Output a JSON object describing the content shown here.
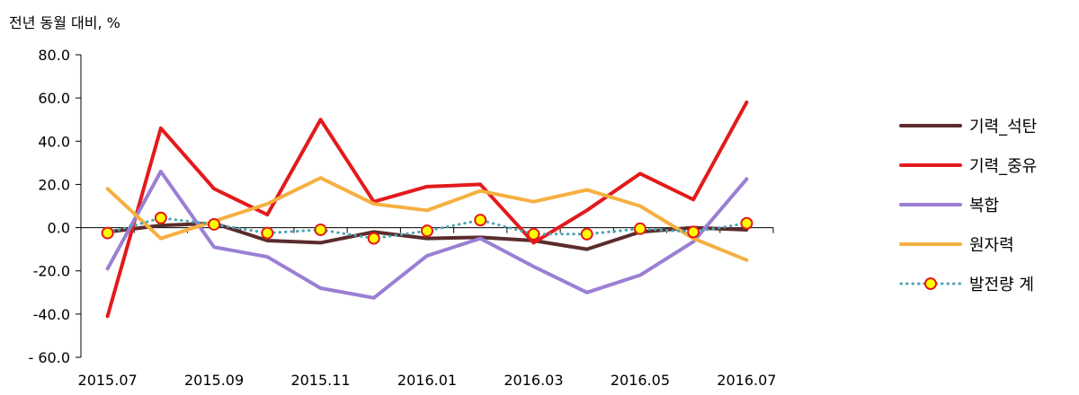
{
  "chart_data": {
    "type": "line",
    "ylabel": "전년 동월 대비, %",
    "xlabel": "",
    "ylim": [
      -60,
      80
    ],
    "yticks": [
      80,
      60,
      40,
      20,
      0,
      -20,
      -40,
      -60
    ],
    "ytick_labels": [
      "80.0",
      "60.0",
      "40.0",
      "20.0",
      "0.0",
      "-20.0",
      "-40.0",
      "- 60.0"
    ],
    "x": [
      "2015.07",
      "2015.08",
      "2015.09",
      "2015.10",
      "2015.11",
      "2015.12",
      "2016.01",
      "2016.02",
      "2016.03",
      "2016.04",
      "2016.05",
      "2016.06",
      "2016.07"
    ],
    "xtick_labels": [
      "2015.07",
      "2015.09",
      "2015.11",
      "2016.01",
      "2016.03",
      "2016.05",
      "2016.07"
    ],
    "grid": false,
    "legend_position": "right",
    "series": [
      {
        "name": "기력_석탄",
        "color": "#5b2c2c",
        "style": "solid",
        "values": [
          -2.0,
          1.0,
          2.0,
          -6.0,
          -7.0,
          -2.0,
          -5.0,
          -4.5,
          -6.0,
          -10.0,
          -2.0,
          0.0,
          -1.0
        ]
      },
      {
        "name": "기력_중유",
        "color": "#e31a1c",
        "style": "solid",
        "values": [
          -41.0,
          46.0,
          18.0,
          6.0,
          50.0,
          12.0,
          19.0,
          20.0,
          -7.0,
          8.0,
          25.0,
          13.0,
          58.0
        ]
      },
      {
        "name": "복합",
        "color": "#9b7fd4",
        "style": "solid",
        "values": [
          -19.0,
          26.0,
          -9.0,
          -13.5,
          -28.0,
          -32.5,
          -13.0,
          -5.0,
          -18.0,
          -30.0,
          -22.0,
          -6.5,
          22.5
        ]
      },
      {
        "name": "원자력",
        "color": "#f5b041",
        "style": "solid",
        "values": [
          18.0,
          -5.0,
          3.0,
          11.0,
          23.0,
          11.0,
          8.0,
          17.0,
          12.0,
          17.5,
          10.0,
          -5.0,
          -15.0
        ]
      },
      {
        "name": "발전량 계",
        "color": "#4aa3b3",
        "style": "dotted",
        "marker": "circle",
        "values": [
          -2.5,
          4.5,
          1.5,
          -2.5,
          -1.0,
          -5.0,
          -1.5,
          3.5,
          -3.0,
          -3.0,
          -0.5,
          -2.0,
          2.0
        ]
      }
    ]
  }
}
